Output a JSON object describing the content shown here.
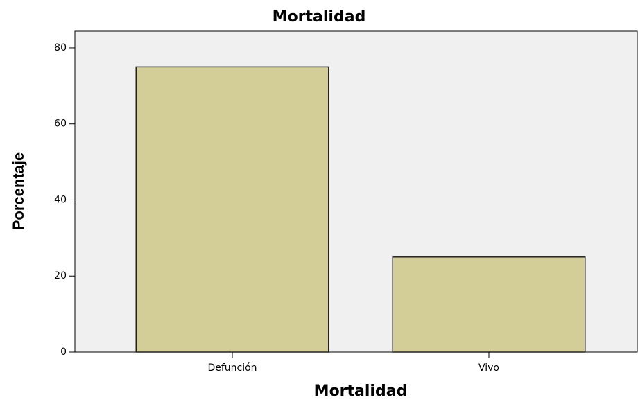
{
  "chart_data": {
    "type": "bar",
    "title": "Mortalidad",
    "x_label": "Mortalidad",
    "y_label": "Porcentaje",
    "categories": [
      "Defunción",
      "Vivo"
    ],
    "values": [
      75,
      25
    ],
    "color": "#d3cd98",
    "ylim": [
      0,
      84
    ],
    "yticks": [
      0,
      20,
      40,
      60,
      80
    ],
    "grid": false
  }
}
